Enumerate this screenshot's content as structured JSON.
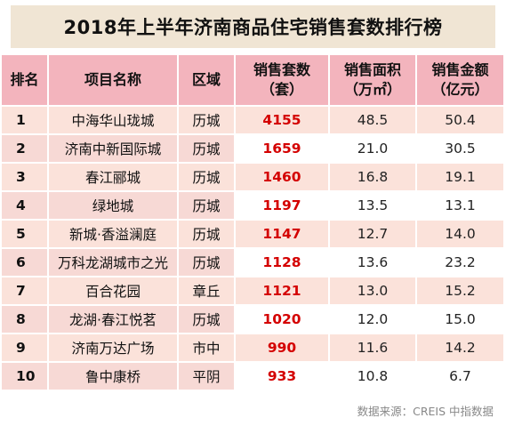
{
  "title": "2018年上半年济南商品住宅销售套数排行榜",
  "headers": {
    "rank": "排名",
    "name": "项目名称",
    "district": "区域",
    "units_line1": "销售套数",
    "units_line2": "（套）",
    "area_line1": "销售面积",
    "area_line2": "（万㎡）",
    "amount_line1": "销售金额",
    "amount_line2": "（亿元）"
  },
  "rows": [
    {
      "rank": "1",
      "name": "中海华山珑城",
      "district": "历城",
      "units": "4155",
      "area": "48.5",
      "amount": "50.4"
    },
    {
      "rank": "2",
      "name": "济南中新国际城",
      "district": "历城",
      "units": "1659",
      "area": "21.0",
      "amount": "30.5"
    },
    {
      "rank": "3",
      "name": "春江郦城",
      "district": "历城",
      "units": "1460",
      "area": "16.8",
      "amount": "19.1"
    },
    {
      "rank": "4",
      "name": "绿地城",
      "district": "历城",
      "units": "1197",
      "area": "13.5",
      "amount": "13.1"
    },
    {
      "rank": "5",
      "name": "新城·香溢澜庭",
      "district": "历城",
      "units": "1147",
      "area": "12.7",
      "amount": "14.0"
    },
    {
      "rank": "6",
      "name": "万科龙湖城市之光",
      "district": "历城",
      "units": "1128",
      "area": "13.6",
      "amount": "23.2"
    },
    {
      "rank": "7",
      "name": "百合花园",
      "district": "章丘",
      "units": "1121",
      "area": "13.0",
      "amount": "15.2"
    },
    {
      "rank": "8",
      "name": "龙湖·春江悦茗",
      "district": "历城",
      "units": "1020",
      "area": "12.0",
      "amount": "15.0"
    },
    {
      "rank": "9",
      "name": "济南万达广场",
      "district": "市中",
      "units": "990",
      "area": "11.6",
      "amount": "14.2"
    },
    {
      "rank": "10",
      "name": "鲁中康桥",
      "district": "平阴",
      "units": "933",
      "area": "10.8",
      "amount": "6.7"
    }
  ],
  "source": "数据来源：CREIS 中指数据",
  "colors": {
    "title_bg": "#f0e5d4",
    "header_bg": "#f3b4bd",
    "row_odd_bg": "#fbe2da",
    "units_text": "#d40000"
  }
}
